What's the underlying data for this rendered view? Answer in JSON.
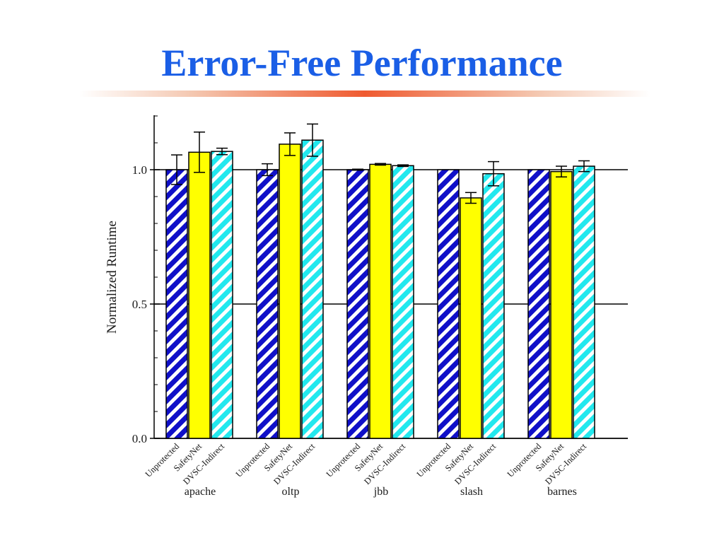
{
  "slide": {
    "title": "Error-Free Performance"
  },
  "colors": {
    "title": "#1a5ee6",
    "rule_center": "#ef5a30",
    "unprotected_stripe": "#1010c8",
    "safetynet_fill": "#ffff00",
    "dvsc_stripe": "#22e8ee"
  },
  "chart_data": {
    "type": "bar",
    "ylabel": "Normalized Runtime",
    "ylim": [
      0.0,
      1.2
    ],
    "yticks": [
      "0.0",
      "0.5",
      "1.0"
    ],
    "ytick_values": [
      0.0,
      0.5,
      1.0
    ],
    "grid": "horizontal lines at 0.5 and 1.0",
    "groups": [
      "apache",
      "oltp",
      "jbb",
      "slash",
      "barnes"
    ],
    "series": [
      {
        "name": "Unprotected",
        "style": "blue-white diagonal stripes",
        "values": [
          1.0,
          1.0,
          1.0,
          1.0,
          1.0
        ],
        "errors": [
          0.055,
          0.022,
          0.002,
          0.0,
          0.0
        ]
      },
      {
        "name": "SafetyNet",
        "style": "solid yellow",
        "values": [
          1.065,
          1.095,
          1.02,
          0.895,
          0.993
        ],
        "errors": [
          0.075,
          0.042,
          0.003,
          0.02,
          0.02
        ]
      },
      {
        "name": "DVSC-Indirect",
        "style": "cyan-white diagonal stripes",
        "values": [
          1.068,
          1.11,
          1.015,
          0.985,
          1.013
        ],
        "errors": [
          0.012,
          0.06,
          0.003,
          0.045,
          0.02
        ]
      }
    ]
  }
}
